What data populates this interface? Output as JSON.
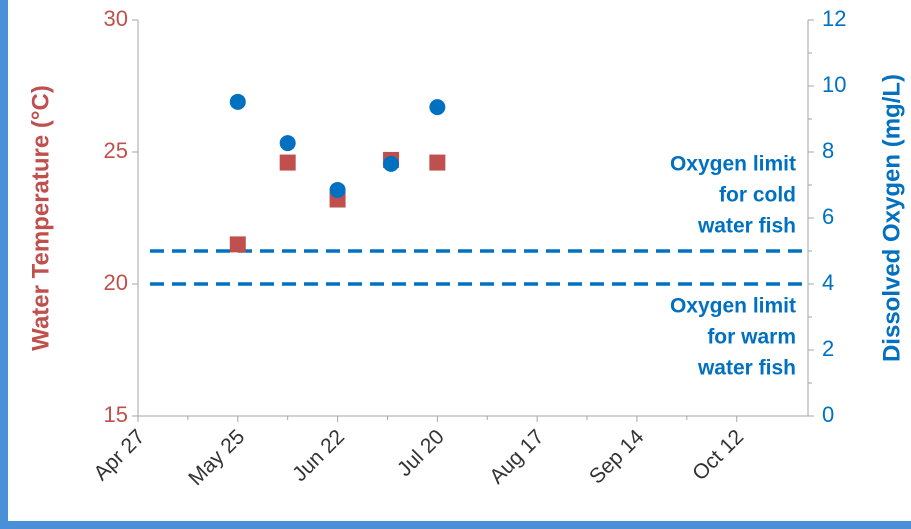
{
  "chart_data": {
    "type": "scatter",
    "x_label": null,
    "y_label": "Water Temperature (°C)",
    "y2_label": "Dissolved Oxygen (mg/L)",
    "xlim": [
      "Apr 27",
      "Nov 1"
    ],
    "xticks": [
      "Apr 27",
      "May 25",
      "Jun 22",
      "Jul 20",
      "Aug 17",
      "Sep 14",
      "Oct 12"
    ],
    "ylim": [
      15,
      30
    ],
    "yticks": [
      15,
      20,
      25,
      30
    ],
    "y2lim": [
      0,
      12
    ],
    "y2ticks": [
      0,
      2,
      4,
      6,
      8,
      10,
      12
    ],
    "series": [
      {
        "name": "Water Temperature",
        "color": "#c0504d",
        "marker": "square",
        "axis": "y",
        "x": [
          "May 25",
          "Jun 8",
          "Jun 22",
          "Jul 7",
          "Jul 20"
        ],
        "values": [
          21.5,
          24.6,
          23.2,
          24.7,
          24.6
        ]
      },
      {
        "name": "Dissolved Oxygen",
        "color": "#0070c0",
        "marker": "circle",
        "axis": "y2",
        "x": [
          "May 25",
          "Jun 8",
          "Jun 22",
          "Jul 7",
          "Jul 20"
        ],
        "values": [
          9.52,
          8.27,
          6.85,
          7.64,
          9.36
        ]
      }
    ],
    "reference_lines": [
      {
        "value": 5,
        "axis": "y2",
        "color": "#0070c0",
        "label": [
          "Oxygen limit",
          "for cold",
          "water fish"
        ]
      },
      {
        "value": 4,
        "axis": "y2",
        "color": "#0070c0",
        "label": [
          "Oxygen limit",
          "for warm",
          "water fish"
        ]
      }
    ]
  }
}
